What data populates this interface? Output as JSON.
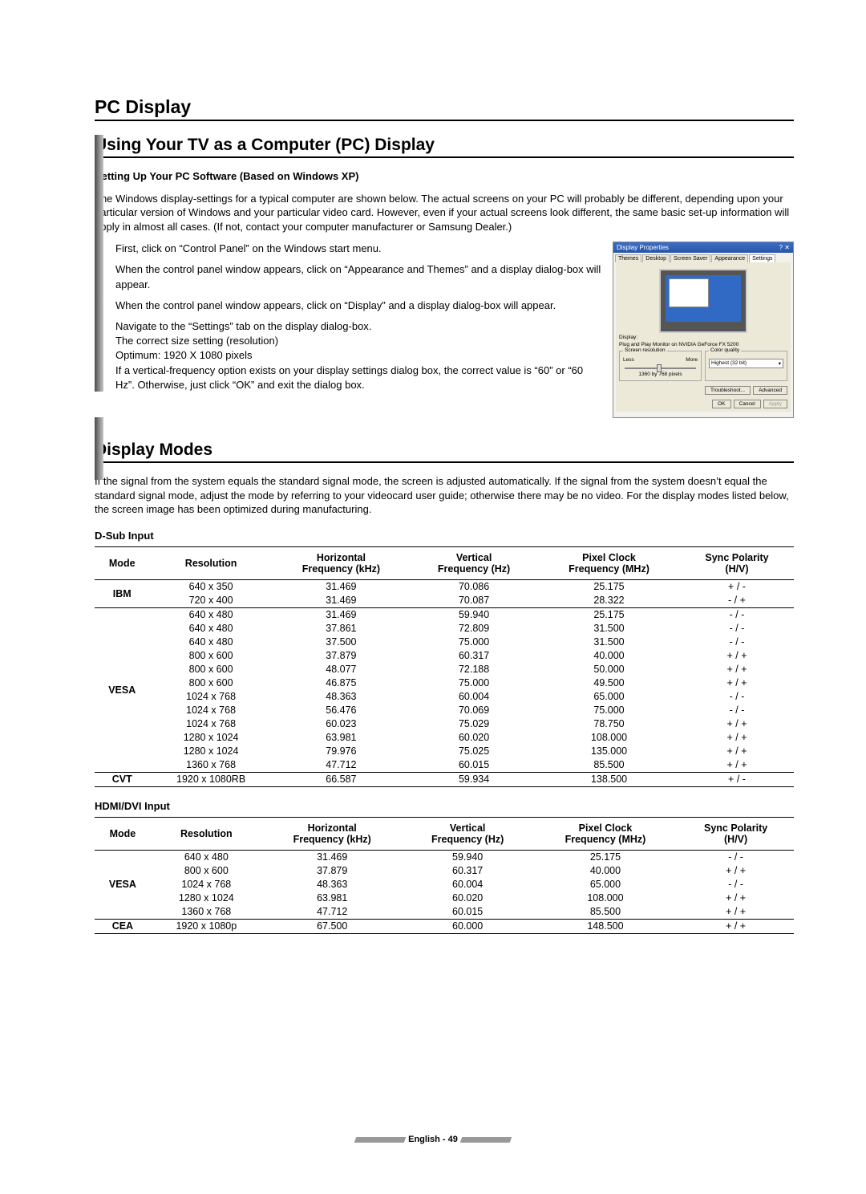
{
  "headings": {
    "main": "PC Display",
    "sub1": "Using Your TV as a Computer (PC) Display",
    "sub2": "Display Modes"
  },
  "setup": {
    "title": "Setting Up Your PC Software (Based on Windows XP)",
    "intro": "The Windows display-settings for a typical computer are shown below. The actual screens on your PC will probably be different, depending upon your particular version of Windows and your particular video card. However, even if your actual screens look different, the same basic set-up information will apply in almost all cases. (If not, contact your computer manufacturer or Samsung Dealer.)",
    "steps": [
      "First, click on “Control Panel” on the Windows start menu.",
      "When the control panel window appears, click on “Appearance and Themes” and a display dialog-box will appear.",
      "When the control panel window appears, click on “Display” and a display dialog-box will appear.",
      "Navigate to the “Settings” tab on the display dialog-box.\nThe correct size setting (resolution)\nOptimum: 1920 X 1080 pixels\nIf a vertical-frequency option exists on your display settings dialog box, the correct value is “60” or “60 Hz”. Otherwise, just click “OK” and exit the dialog box."
    ]
  },
  "screenshot": {
    "title": "Display Properties",
    "tabs": [
      "Themes",
      "Desktop",
      "Screen Saver",
      "Appearance",
      "Settings"
    ],
    "active_tab": 4,
    "display_label": "Display:",
    "display_value": "Plug and Play Monitor on NVIDIA GeForce FX 5200",
    "group1_title": "Screen resolution",
    "group1_less": "Less",
    "group1_more": "More",
    "group1_value": "1360 by 768 pixels",
    "group2_title": "Color quality",
    "group2_value": "Highest (32 bit)",
    "btn_trouble": "Troubleshoot...",
    "btn_adv": "Advanced",
    "btn_ok": "OK",
    "btn_cancel": "Cancel",
    "btn_apply": "Apply"
  },
  "display_modes_intro": "If the signal from the system equals the standard signal mode, the screen is adjusted automatically. If the signal from the system doesn’t equal the standard signal mode, adjust the mode by referring to your videocard user guide; otherwise there may be no video. For the display modes listed below, the screen image has been optimized during manufacturing.",
  "table_columns": [
    "Mode",
    "Resolution",
    "Horizontal\nFrequency (kHz)",
    "Vertical\nFrequency (Hz)",
    "Pixel Clock\nFrequency (MHz)",
    "Sync Polarity\n(H/V)"
  ],
  "dsub": {
    "title": "D-Sub Input",
    "groups": [
      {
        "mode": "IBM",
        "rows": [
          [
            "640 x 350",
            "31.469",
            "70.086",
            "25.175",
            "+ / -"
          ],
          [
            "720 x 400",
            "31.469",
            "70.087",
            "28.322",
            "- / +"
          ]
        ]
      },
      {
        "mode": "VESA",
        "rows": [
          [
            "640 x 480",
            "31.469",
            "59.940",
            "25.175",
            "- / -"
          ],
          [
            "640 x 480",
            "37.861",
            "72.809",
            "31.500",
            "- / -"
          ],
          [
            "640 x 480",
            "37.500",
            "75.000",
            "31.500",
            "- / -"
          ],
          [
            "800 x 600",
            "37.879",
            "60.317",
            "40.000",
            "+ / +"
          ],
          [
            "800 x 600",
            "48.077",
            "72.188",
            "50.000",
            "+ / +"
          ],
          [
            "800 x 600",
            "46.875",
            "75.000",
            "49.500",
            "+ / +"
          ],
          [
            "1024 x 768",
            "48.363",
            "60.004",
            "65.000",
            "- / -"
          ],
          [
            "1024 x 768",
            "56.476",
            "70.069",
            "75.000",
            "- / -"
          ],
          [
            "1024 x 768",
            "60.023",
            "75.029",
            "78.750",
            "+ / +"
          ],
          [
            "1280 x 1024",
            "63.981",
            "60.020",
            "108.000",
            "+ / +"
          ],
          [
            "1280 x 1024",
            "79.976",
            "75.025",
            "135.000",
            "+ / +"
          ],
          [
            "1360 x 768",
            "47.712",
            "60.015",
            "85.500",
            "+ / +"
          ]
        ]
      },
      {
        "mode": "CVT",
        "rows": [
          [
            "1920 x 1080RB",
            "66.587",
            "59.934",
            "138.500",
            "+ / -"
          ]
        ]
      }
    ]
  },
  "hdmi": {
    "title": "HDMI/DVI Input",
    "groups": [
      {
        "mode": "VESA",
        "rows": [
          [
            "640 x 480",
            "31.469",
            "59.940",
            "25.175",
            "- / -"
          ],
          [
            "800 x 600",
            "37.879",
            "60.317",
            "40.000",
            "+ / +"
          ],
          [
            "1024 x 768",
            "48.363",
            "60.004",
            "65.000",
            "- / -"
          ],
          [
            "1280 x 1024",
            "63.981",
            "60.020",
            "108.000",
            "+ / +"
          ],
          [
            "1360 x 768",
            "47.712",
            "60.015",
            "85.500",
            "+ / +"
          ]
        ]
      },
      {
        "mode": "CEA",
        "rows": [
          [
            "1920 x 1080p",
            "67.500",
            "60.000",
            "148.500",
            "+ / +"
          ]
        ]
      }
    ]
  },
  "footer": {
    "lang": "English",
    "page": "49"
  }
}
